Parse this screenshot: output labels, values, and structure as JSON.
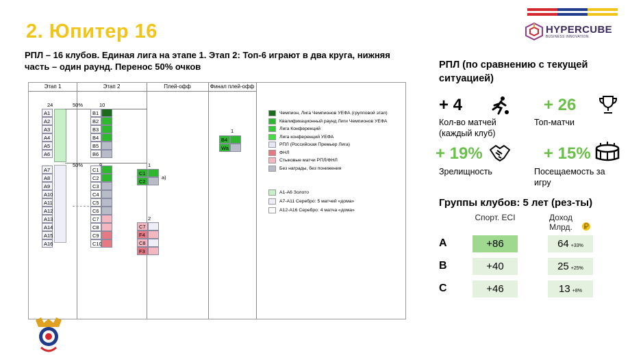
{
  "slide": {
    "title": "2. Юпитер 16",
    "subtitle": "РПЛ – 16 клубов. Единая лига на этапе 1. Этап 2: Топ-6 играют в два круга, нижняя часть – один раунд.  Перенос 50% очков"
  },
  "logo": {
    "name": "HYPERCUBE",
    "tagline": "BUSINESS INNOVATION"
  },
  "flag_colors": [
    "#d4282e",
    "#1f3c8c",
    "#f0c419"
  ],
  "diagram": {
    "columns": [
      "Этап 1",
      "Этап 2",
      "Плей-офф",
      "Финал плей-офф"
    ],
    "stage1_count": "24",
    "transfer_1": "50%",
    "stage2_count_top": "10",
    "transfer_2": "50%",
    "stage2_count_bottom": "9",
    "stage1_teams": [
      "A1",
      "A2",
      "A3",
      "A4",
      "A5",
      "A6",
      "A7",
      "A8",
      "A9",
      "A10",
      "A11",
      "A12",
      "A13",
      "A14",
      "A15",
      "A16"
    ],
    "stage2_teams": [
      "B1",
      "B2",
      "B3",
      "B4",
      "B5",
      "B6",
      "C1",
      "C2",
      "C3",
      "C4",
      "C5",
      "C6",
      "C7",
      "C8",
      "C9",
      "C10"
    ],
    "stage2_colors": [
      "#1a6b1a",
      "#2db82d",
      "#2db82d",
      "#2db82d",
      "#b8bcc8",
      "#b8bcc8",
      "#2db82d",
      "#2db82d",
      "#b8bcc8",
      "#b8bcc8",
      "#b8bcc8",
      "#b8bcc8",
      "#f5b7bf",
      "#f5b7bf",
      "#e57a84",
      "#e57a84"
    ],
    "playoff_group1_label": "1",
    "playoff_group1": [
      "C1",
      "C2"
    ],
    "playoff_group1_note": "а)",
    "playoff_group2_label": "2",
    "playoff_group2": [
      "C7",
      "F4",
      "C8",
      "F3"
    ],
    "final_label": "1",
    "final_teams": [
      "B4",
      "Wa"
    ],
    "legend": [
      {
        "color": "#1a6b1a",
        "text": "Чемпион, Лига Чемпионов УЕФА (групповой этап)"
      },
      {
        "color": "#2db82d",
        "text": "Квалификационный раунд Лиги Чемпионов УЕФА"
      },
      {
        "color": "#33cc33",
        "text": "Лига Конференций"
      },
      {
        "color": "#44dd44",
        "text": "Лига конференций УЕФА"
      },
      {
        "color": "#e6e6f5",
        "text": "РПЛ (Российская Премьер Лига)"
      },
      {
        "color": "#e57a84",
        "text": "ФНЛ"
      },
      {
        "color": "#f5b7bf",
        "text": "Стыковые матчи РПЛ/ФНЛ"
      },
      {
        "color": "#b8bcc8",
        "text": "Без награды, без понижения"
      }
    ],
    "legend2": [
      {
        "color": "#c8f0c8",
        "text": "А1-А6 Золото"
      },
      {
        "color": "#eeeef8",
        "text": "А7-А11 Серебро: 5 матчей «дома»"
      },
      {
        "color": "#ffffff",
        "text": "А12-А16 Серебро: 4 матча «дома»"
      }
    ]
  },
  "right_panel": {
    "title": "РПЛ (по сравнению с текущей ситуацией)",
    "stats": [
      {
        "value": "+ 4",
        "label": "Кол-во матчей (каждый клуб)",
        "icon": "running-person-icon"
      },
      {
        "value": "+ 26",
        "label": "Топ-матчи",
        "icon": "trophy-icon"
      },
      {
        "value": "+ 19%",
        "label": "Зрелищность",
        "icon": "handshake-icon"
      },
      {
        "value": "+ 15%",
        "label": "Посещаемость за игру",
        "icon": "stadium-icon"
      }
    ],
    "groups_title": "Группы клубов: 5 лет (рез-ты)",
    "col1_header": "Спорт. ECI",
    "col2_header": "Доход Млрд.",
    "rows": [
      {
        "group": "A",
        "eci": "+86",
        "income": "64",
        "pct": "+33%"
      },
      {
        "group": "B",
        "eci": "+40",
        "income": "25",
        "pct": "+25%"
      },
      {
        "group": "C",
        "eci": "+46",
        "income": "13",
        "pct": "+8%"
      }
    ],
    "eci_colors": [
      "#9fd88f",
      "#e4f1df",
      "#e4f1df"
    ]
  }
}
